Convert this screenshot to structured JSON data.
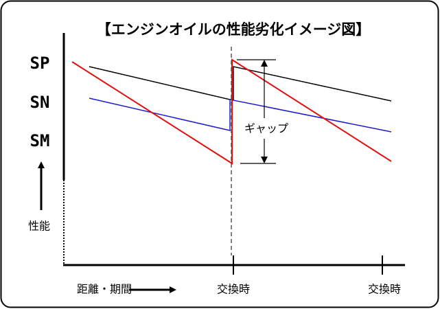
{
  "title": "【エンジンオイルの性能劣化イメージ図】",
  "y_labels": [
    "SP",
    "SN",
    "SM"
  ],
  "y_axis_label": "性能",
  "gap_label": "ギャップ",
  "x_axis_label": "距離・期間",
  "x_markers": [
    "交換時",
    "交換時"
  ]
}
